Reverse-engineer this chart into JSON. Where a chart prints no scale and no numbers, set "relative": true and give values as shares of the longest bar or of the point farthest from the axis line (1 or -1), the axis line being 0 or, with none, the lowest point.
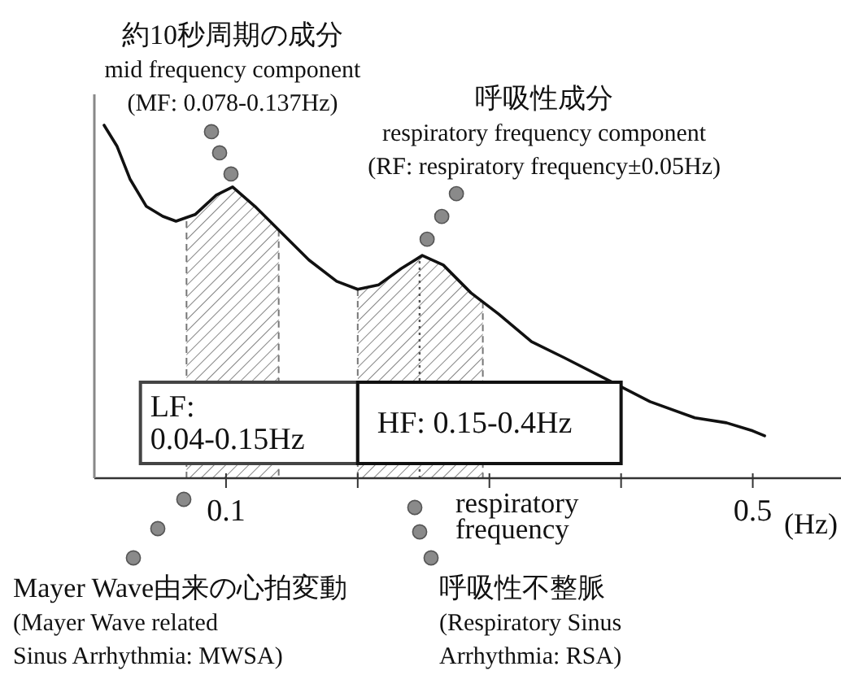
{
  "chart_data": {
    "type": "line",
    "relative": true,
    "x": [
      0.0074,
      0.0173,
      0.027,
      0.0395,
      0.052,
      0.062,
      0.0765,
      0.0926,
      0.105,
      0.122,
      0.142,
      0.163,
      0.184,
      0.2,
      0.216,
      0.233,
      0.249,
      0.265,
      0.286,
      0.307,
      0.332,
      0.357,
      0.398,
      0.422,
      0.456,
      0.48,
      0.5,
      0.509
    ],
    "series": [
      {
        "color": "#111111",
        "values": [
          1.0,
          0.94,
          0.848,
          0.77,
          0.742,
          0.728,
          0.747,
          0.802,
          0.825,
          0.77,
          0.696,
          0.618,
          0.558,
          0.535,
          0.548,
          0.594,
          0.631,
          0.604,
          0.525,
          0.465,
          0.387,
          0.341,
          0.263,
          0.217,
          0.171,
          0.157,
          0.134,
          0.12
        ]
      }
    ],
    "xlim": [
      0,
      0.567
    ],
    "xticks": [
      0.1,
      {
        "value": 0.2,
        "label": null
      },
      {
        "value": 0.3,
        "label": null
      },
      {
        "value": 0.4,
        "label": null
      },
      0.5
    ],
    "xlabel": "(Hz)",
    "ref_lines": [
      {
        "axis": "x",
        "value": 0.247,
        "label": "respiratory\nfrequency",
        "color": "#555555",
        "line_style": "dotted"
      }
    ],
    "bands": [
      {
        "axis": "x",
        "from": 0.07,
        "to": 0.14,
        "color": "#777777"
      },
      {
        "axis": "x",
        "from": 0.2,
        "to": 0.295,
        "color": "#777777"
      },
      {
        "axis": "x",
        "from": 0.035,
        "to": 0.2,
        "label": "LF:\n0.04-0.15Hz",
        "color": "#444444"
      },
      {
        "axis": "x",
        "from": 0.2,
        "to": 0.4,
        "label": "HF: 0.15-0.4Hz",
        "color": "#111111"
      }
    ],
    "annotations": [
      {
        "text": "約10秒周期の成分\nmid frequency component\n(MF: 0.078-0.137Hz)",
        "x": 0.105,
        "y": 0.825
      },
      {
        "text": "呼吸性成分\nrespiratory frequency component\n(RF: respiratory frequency±0.05Hz)",
        "x": 0.249,
        "y": 0.631
      },
      "Mayer Wave由来の心拍変動\n(Mayer Wave related\nSinus Arrhythmia: MWSA)",
      "呼吸性不整脈\n(Respiratory Sinus\nArrhythmia: RSA)"
    ]
  }
}
